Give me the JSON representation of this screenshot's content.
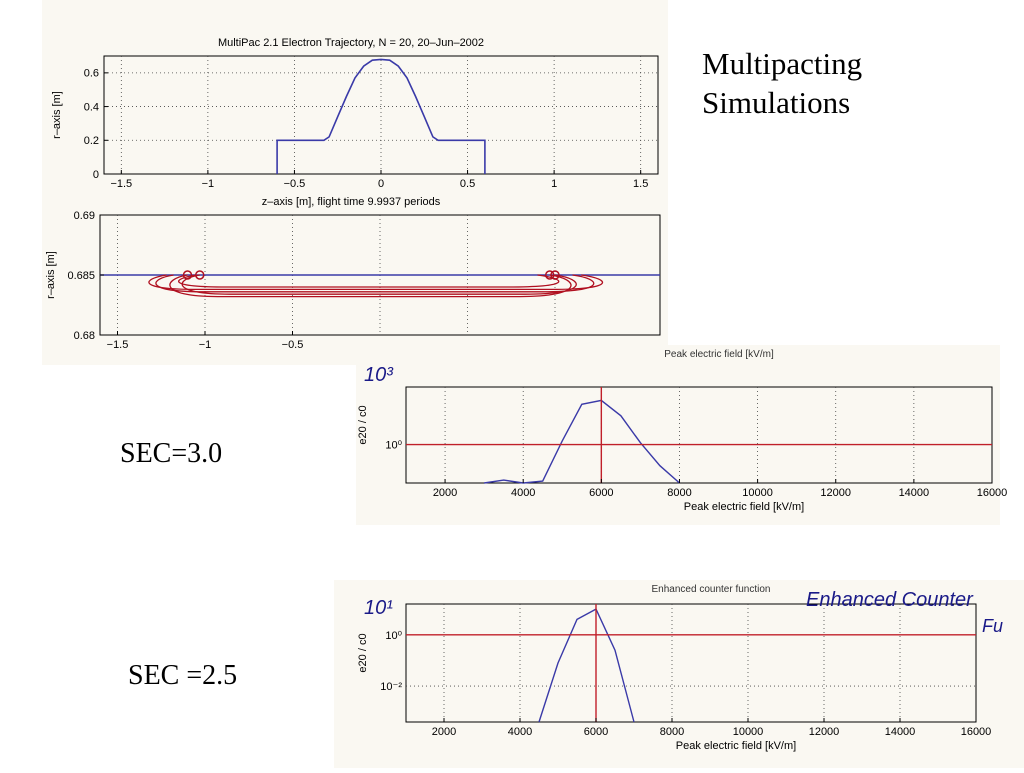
{
  "slide": {
    "title_line1": "Multipacting",
    "title_line2": "Simulations",
    "sec1_label": "SEC=3.0",
    "sec2_label": "SEC =2.5"
  },
  "colors": {
    "curve": "#3a3aa8",
    "redline": "#c0202a",
    "trajectory": "#b01020",
    "axis": "#000000",
    "grid": "#444444",
    "handwriting": "#1a1a88"
  },
  "chart_data": [
    {
      "type": "line",
      "title": "MultiPac 2.1     Electron Trajectory,   N = 20,    20–Jun–2002",
      "xlabel": "z–axis [m],  flight time 9.9937 periods",
      "ylabel": "r–axis [m]",
      "xlim": [
        -1.6,
        1.6
      ],
      "ylim": [
        0,
        0.7
      ],
      "xticks": [
        -1.5,
        -1,
        -0.5,
        0,
        0.5,
        1,
        1.5
      ],
      "xtick_labels": [
        "−1.5",
        "−1",
        "−0.5",
        "0",
        "0.5",
        "1",
        "1.5"
      ],
      "yticks": [
        0,
        0.2,
        0.4,
        0.6
      ],
      "ytick_labels": [
        "0",
        "0.2",
        "0.4",
        "0.6"
      ],
      "grid": true,
      "series": [
        {
          "x": [
            -0.6,
            -0.6,
            -0.33,
            -0.3,
            -0.25,
            -0.2,
            -0.15,
            -0.1,
            -0.05,
            0,
            0.05,
            0.1,
            0.15,
            0.2,
            0.25,
            0.3,
            0.33,
            0.6,
            0.6
          ],
          "y": [
            0,
            0.2,
            0.2,
            0.22,
            0.34,
            0.46,
            0.57,
            0.64,
            0.675,
            0.68,
            0.675,
            0.64,
            0.57,
            0.46,
            0.34,
            0.22,
            0.2,
            0.2,
            0
          ]
        }
      ]
    },
    {
      "type": "line",
      "ylabel": "r–axis [m]",
      "xlim": [
        -1.6,
        1.6
      ],
      "ylim": [
        0.68,
        0.69
      ],
      "xticks": [
        -1.5,
        -1,
        -0.5
      ],
      "xtick_labels": [
        "−1.5",
        "−1",
        "−0.5"
      ],
      "yticks": [
        0.68,
        0.685,
        0.69
      ],
      "ytick_labels": [
        "0.68",
        "0.685",
        "0.69"
      ],
      "grid": true,
      "hline": 0.685,
      "markers_x": [
        -1.1,
        -1.03,
        0.97,
        1.0
      ]
    },
    {
      "type": "line",
      "title": "Peak electric field  [kV/m]",
      "xlabel": "Peak electric field  [kV/m]",
      "ylabel": "e20 / c0",
      "xlim": [
        1000,
        16000
      ],
      "ylim": [
        -2,
        3
      ],
      "xticks": [
        2000,
        4000,
        6000,
        8000,
        10000,
        12000,
        14000,
        16000
      ],
      "xtick_labels": [
        "2000",
        "4000",
        "6000",
        "8000",
        "10000",
        "12000",
        "14000",
        "16000"
      ],
      "ytick_labels": [
        "10⁰"
      ],
      "ytick_values": [
        0
      ],
      "handwritten_top": "10³",
      "hline": 0,
      "vline": 6000,
      "grid": true,
      "series": [
        {
          "x": [
            3000,
            3500,
            4000,
            4500,
            5000,
            5500,
            6000,
            6500,
            7000,
            7500,
            8000
          ],
          "y": [
            -2,
            -1.85,
            -2,
            -1.9,
            0.2,
            2.1,
            2.3,
            1.5,
            0.1,
            -1.1,
            -2
          ]
        }
      ]
    },
    {
      "type": "line",
      "title": "Enhanced counter function",
      "xlabel": "Peak electric field  [kV/m]",
      "ylabel": "e20 / c0",
      "xlim": [
        1000,
        16000
      ],
      "ylim": [
        -3.4,
        1.2
      ],
      "xticks": [
        2000,
        4000,
        6000,
        8000,
        10000,
        12000,
        14000,
        16000
      ],
      "xtick_labels": [
        "2000",
        "4000",
        "6000",
        "8000",
        "10000",
        "12000",
        "14000",
        "16000"
      ],
      "ytick_labels": [
        "10⁰",
        "10⁻²"
      ],
      "ytick_values": [
        0,
        -2
      ],
      "handwritten_top": "10¹",
      "handwritten_note_line1": "Enhanced Counter",
      "handwritten_note_line2": "Fu",
      "hline": 0,
      "vline": 6000,
      "grid": true,
      "series": [
        {
          "x": [
            4500,
            5000,
            5500,
            6000,
            6500,
            7000
          ],
          "y": [
            -3.4,
            -1.1,
            0.6,
            1.0,
            -0.6,
            -3.4
          ]
        }
      ]
    }
  ]
}
